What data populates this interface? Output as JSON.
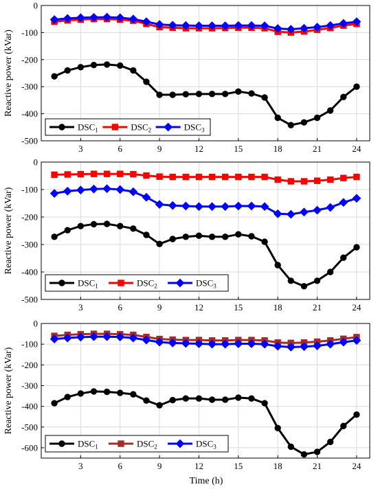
{
  "x_label": "Time (h)",
  "chart_data": [
    {
      "type": "line",
      "ylabel": "Reactive power (kVar)",
      "xlim": [
        0,
        25
      ],
      "ylim": [
        -500,
        0
      ],
      "x_ticks": [
        3,
        6,
        9,
        12,
        15,
        18,
        21,
        24
      ],
      "y_ticks": [
        0,
        -100,
        -200,
        -300,
        -400,
        -500
      ],
      "grid": true,
      "legend": "bottom-left",
      "x": [
        1,
        2,
        3,
        4,
        5,
        6,
        7,
        8,
        9,
        10,
        11,
        12,
        13,
        14,
        15,
        16,
        17,
        18,
        19,
        20,
        21,
        22,
        23,
        24
      ],
      "series": [
        {
          "name": "DSC",
          "subscript": "1",
          "color": "#000000",
          "marker": "circle",
          "values": [
            -262,
            -240,
            -228,
            -220,
            -218,
            -222,
            -240,
            -282,
            -330,
            -330,
            -328,
            -327,
            -327,
            -327,
            -318,
            -325,
            -340,
            -415,
            -442,
            -432,
            -415,
            -388,
            -338,
            -300
          ]
        },
        {
          "name": "DSC",
          "subscript": "2",
          "color": "#ff0000",
          "marker": "square",
          "values": [
            -60,
            -55,
            -52,
            -50,
            -50,
            -52,
            -56,
            -68,
            -80,
            -82,
            -84,
            -84,
            -84,
            -83,
            -82,
            -82,
            -84,
            -97,
            -100,
            -96,
            -90,
            -83,
            -74,
            -68
          ]
        },
        {
          "name": "DSC",
          "subscript": "3",
          "color": "#0000ff",
          "marker": "diamond",
          "values": [
            -52,
            -48,
            -45,
            -44,
            -43,
            -45,
            -50,
            -60,
            -70,
            -73,
            -74,
            -75,
            -75,
            -75,
            -74,
            -74,
            -75,
            -85,
            -88,
            -84,
            -80,
            -74,
            -66,
            -60
          ]
        }
      ]
    },
    {
      "type": "line",
      "ylabel": "Reactive power (kVar)",
      "xlim": [
        0,
        25
      ],
      "ylim": [
        -500,
        0
      ],
      "x_ticks": [
        3,
        6,
        9,
        12,
        15,
        18,
        21,
        24
      ],
      "y_ticks": [
        0,
        -100,
        -200,
        -300,
        -400,
        -500
      ],
      "grid": true,
      "legend": "bottom-left",
      "x": [
        1,
        2,
        3,
        4,
        5,
        6,
        7,
        8,
        9,
        10,
        11,
        12,
        13,
        14,
        15,
        16,
        17,
        18,
        19,
        20,
        21,
        22,
        23,
        24
      ],
      "series": [
        {
          "name": "DSC",
          "subscript": "1",
          "color": "#000000",
          "marker": "circle",
          "values": [
            -272,
            -248,
            -233,
            -226,
            -225,
            -233,
            -242,
            -265,
            -298,
            -280,
            -272,
            -268,
            -272,
            -272,
            -263,
            -270,
            -290,
            -375,
            -432,
            -452,
            -432,
            -400,
            -348,
            -310
          ]
        },
        {
          "name": "DSC",
          "subscript": "2",
          "color": "#ff0000",
          "marker": "square",
          "values": [
            -46,
            -45,
            -44,
            -43,
            -43,
            -43,
            -44,
            -49,
            -53,
            -54,
            -54,
            -54,
            -54,
            -54,
            -54,
            -54,
            -54,
            -64,
            -70,
            -70,
            -68,
            -64,
            -58,
            -54
          ]
        },
        {
          "name": "DSC",
          "subscript": "3",
          "color": "#0000ff",
          "marker": "diamond",
          "values": [
            -114,
            -106,
            -102,
            -98,
            -97,
            -100,
            -108,
            -128,
            -154,
            -158,
            -160,
            -162,
            -162,
            -162,
            -160,
            -160,
            -162,
            -188,
            -190,
            -182,
            -175,
            -165,
            -147,
            -132
          ]
        }
      ]
    },
    {
      "type": "line",
      "ylabel": "Reactive power (kVar)",
      "xlabel": "Time (h)",
      "xlim": [
        0,
        25
      ],
      "ylim": [
        -650,
        0
      ],
      "x_ticks": [
        3,
        6,
        9,
        12,
        15,
        18,
        21,
        24
      ],
      "y_ticks": [
        0,
        -100,
        -200,
        -300,
        -400,
        -500,
        -600
      ],
      "grid": true,
      "legend": "bottom-left",
      "x": [
        1,
        2,
        3,
        4,
        5,
        6,
        7,
        8,
        9,
        10,
        11,
        12,
        13,
        14,
        15,
        16,
        17,
        18,
        19,
        20,
        21,
        22,
        23,
        24
      ],
      "series": [
        {
          "name": "DSC",
          "subscript": "1",
          "color": "#000000",
          "marker": "circle",
          "values": [
            -385,
            -355,
            -338,
            -328,
            -330,
            -335,
            -342,
            -372,
            -395,
            -370,
            -362,
            -362,
            -368,
            -368,
            -358,
            -362,
            -385,
            -505,
            -595,
            -632,
            -620,
            -572,
            -495,
            -440
          ]
        },
        {
          "name": "DSC",
          "subscript": "2",
          "color": "#a52a2a",
          "marker": "square",
          "values": [
            -60,
            -55,
            -52,
            -50,
            -50,
            -52,
            -55,
            -65,
            -75,
            -78,
            -80,
            -80,
            -82,
            -82,
            -80,
            -80,
            -82,
            -92,
            -94,
            -92,
            -88,
            -82,
            -74,
            -66
          ]
        },
        {
          "name": "DSC",
          "subscript": "3",
          "color": "#0000ff",
          "marker": "diamond",
          "values": [
            -75,
            -70,
            -66,
            -64,
            -64,
            -65,
            -70,
            -80,
            -90,
            -94,
            -96,
            -98,
            -100,
            -100,
            -98,
            -98,
            -100,
            -110,
            -114,
            -112,
            -108,
            -100,
            -90,
            -82
          ]
        }
      ]
    }
  ]
}
